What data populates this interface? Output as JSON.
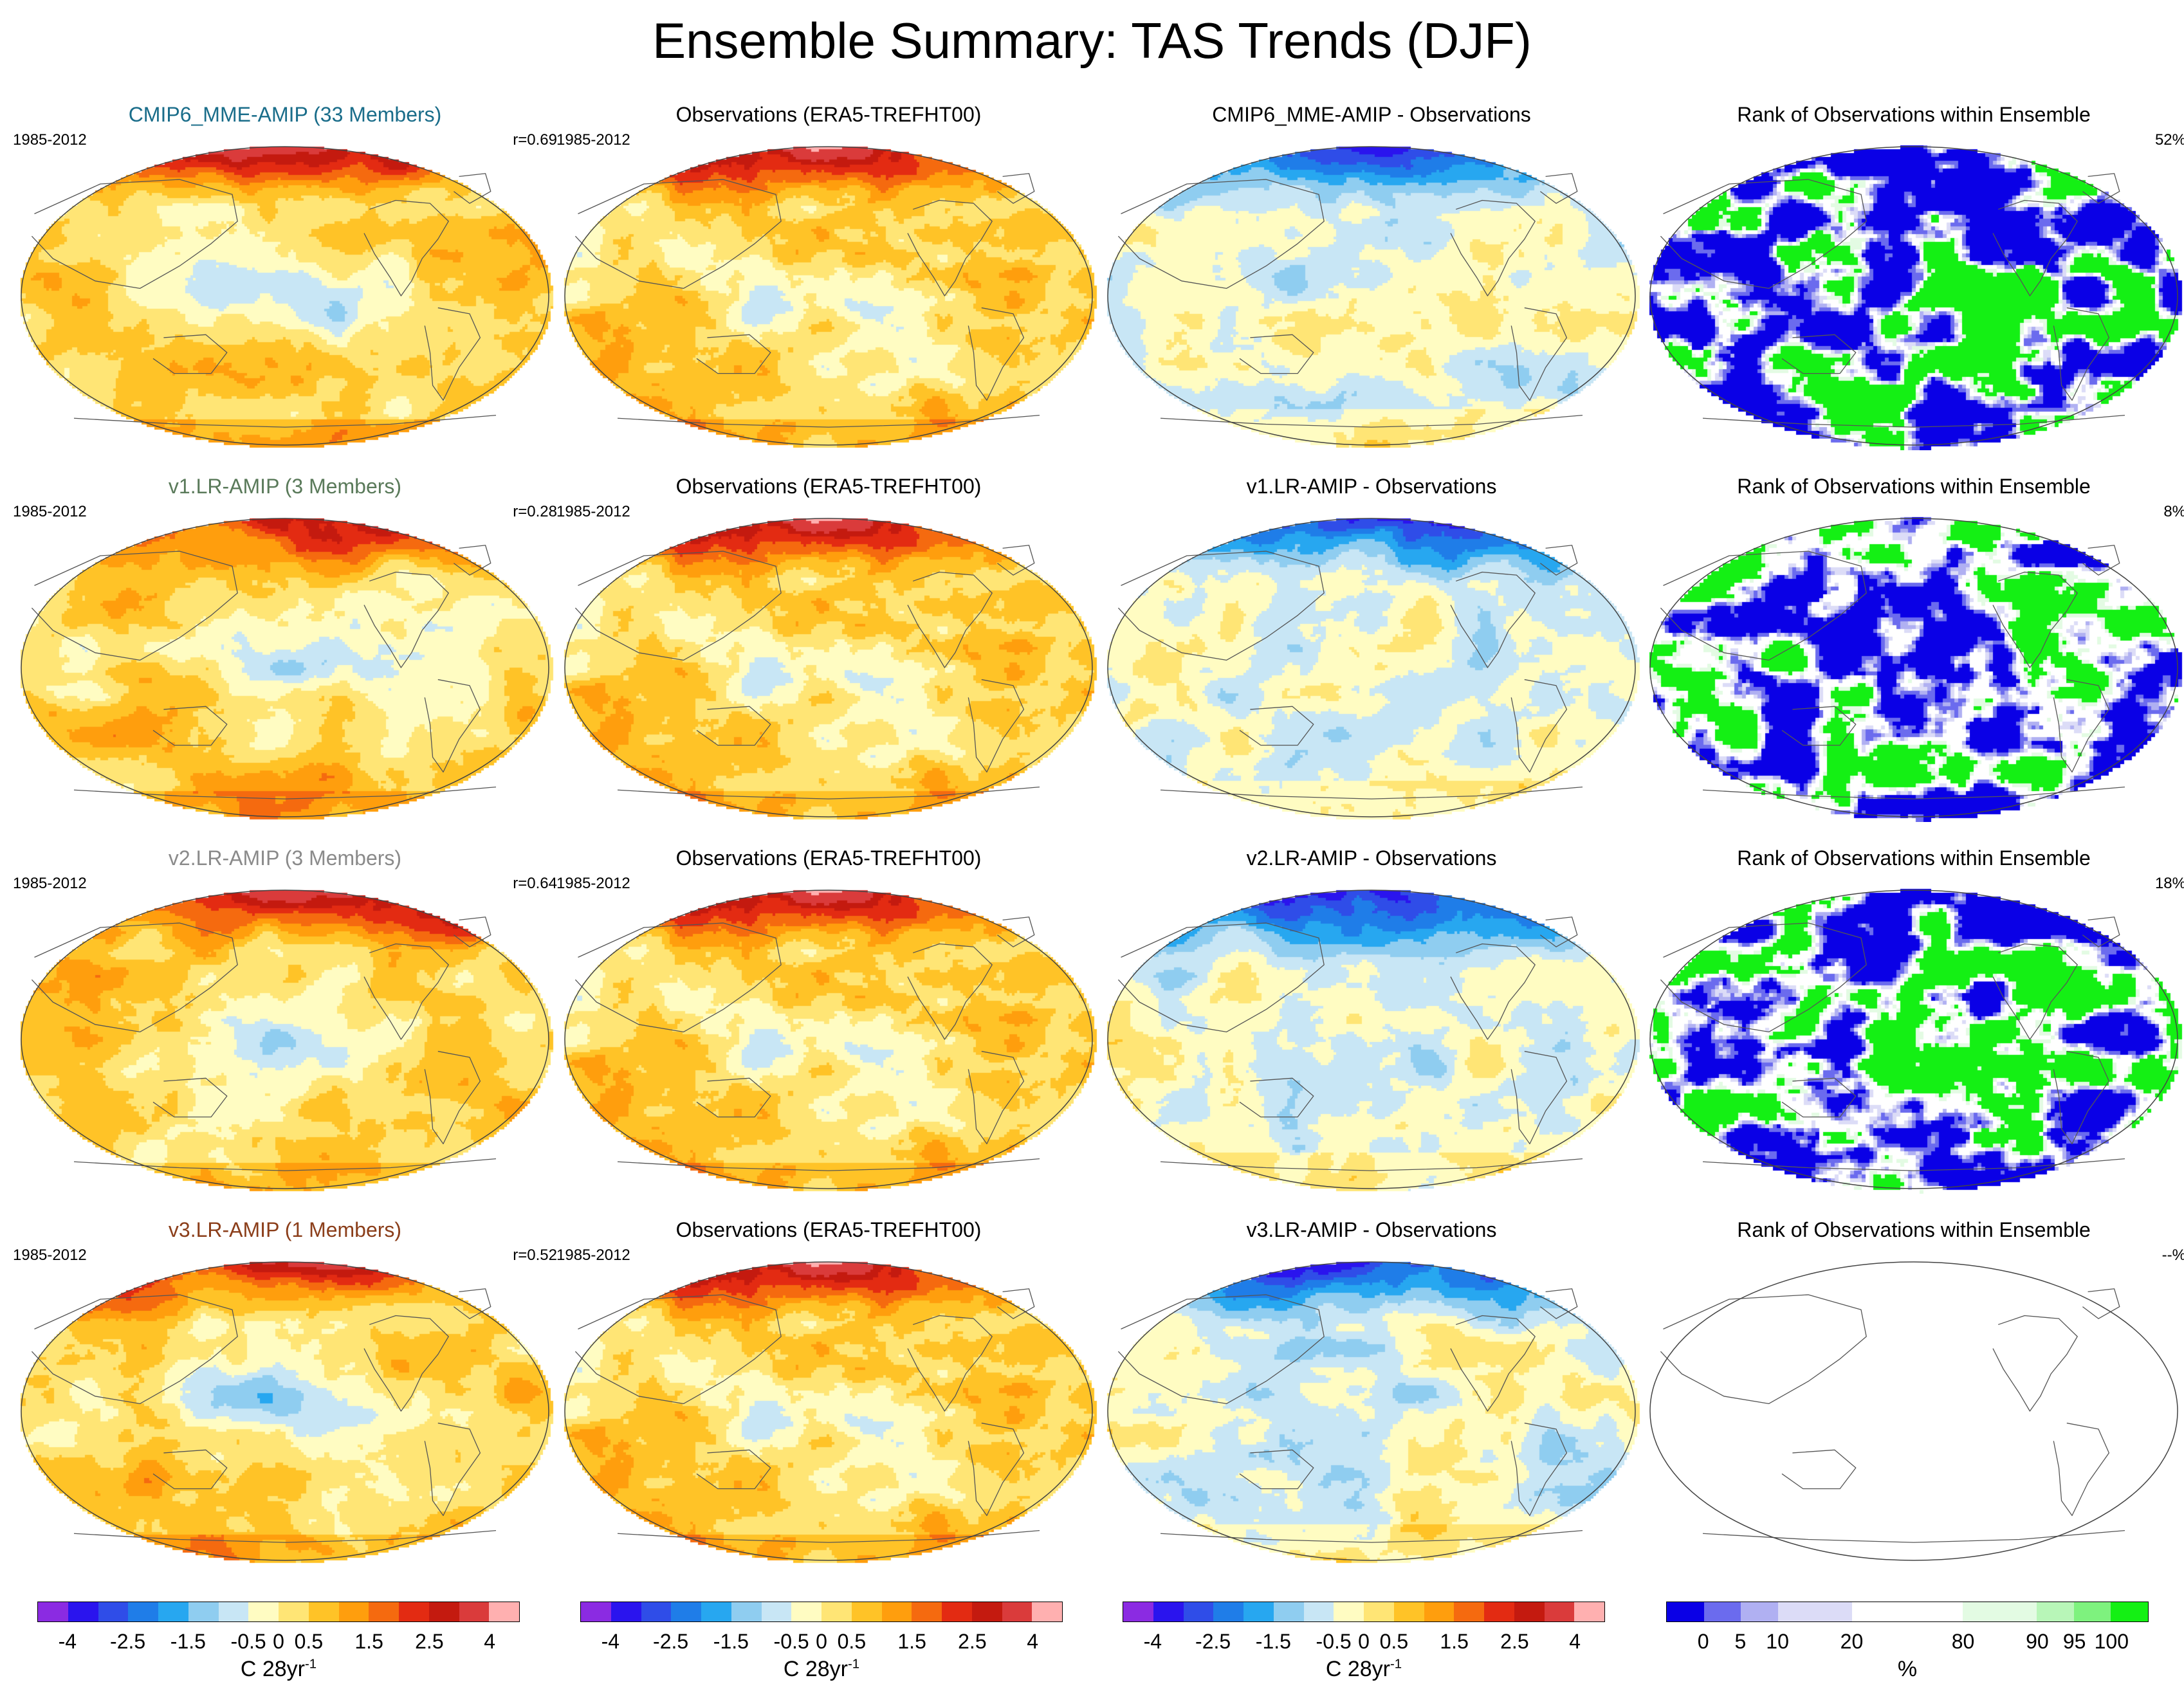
{
  "title": "Ensemble Summary: TAS Trends (DJF)",
  "colors": {
    "cmip6": "#1a6d8a",
    "v1": "#5a7a5a",
    "v2": "#8a8a8a",
    "v3": "#8b3e1a",
    "trend_scale": [
      "#8b2be2",
      "#2a14ee",
      "#2f4de8",
      "#1f7de8",
      "#27a7f0",
      "#8fcdf0",
      "#c8e6f5",
      "#fffcc2",
      "#ffe575",
      "#ffc327",
      "#ff9e0d",
      "#f56a0f",
      "#e32b12",
      "#c41a0f",
      "#da3b3b",
      "#ffb0b0"
    ],
    "rank_scale": [
      "#0a00e6",
      "#6b6bee",
      "#b0b0f2",
      "#dcdcf7",
      "#ffffff",
      "#e3fbe3",
      "#b8f6b8",
      "#7ef27e",
      "#14f014"
    ]
  },
  "rows": [
    {
      "model": {
        "title": "CMIP6_MME-AMIP (33 Members)",
        "period": "1985-2012",
        "corr": "r=0.69",
        "color_key": "cmip6"
      },
      "obs": {
        "title": "Observations (ERA5-TREFHT00)",
        "period": "1985-2012"
      },
      "diff": {
        "title": "CMIP6_MME-AMIP - Observations"
      },
      "rank": {
        "title": "Rank of Observations within Ensemble",
        "pct": "52%"
      }
    },
    {
      "model": {
        "title": "v1.LR-AMIP (3 Members)",
        "period": "1985-2012",
        "corr": "r=0.28",
        "color_key": "v1"
      },
      "obs": {
        "title": "Observations (ERA5-TREFHT00)",
        "period": "1985-2012"
      },
      "diff": {
        "title": "v1.LR-AMIP - Observations"
      },
      "rank": {
        "title": "Rank of Observations within Ensemble",
        "pct": "8%"
      }
    },
    {
      "model": {
        "title": "v2.LR-AMIP (3 Members)",
        "period": "1985-2012",
        "corr": "r=0.64",
        "color_key": "v2"
      },
      "obs": {
        "title": "Observations (ERA5-TREFHT00)",
        "period": "1985-2012"
      },
      "diff": {
        "title": "v2.LR-AMIP - Observations"
      },
      "rank": {
        "title": "Rank of Observations within Ensemble",
        "pct": "18%"
      }
    },
    {
      "model": {
        "title": "v3.LR-AMIP (1 Members)",
        "period": "1985-2012",
        "corr": "r=0.52",
        "color_key": "v3"
      },
      "obs": {
        "title": "Observations (ERA5-TREFHT00)",
        "period": "1985-2012"
      },
      "diff": {
        "title": "v3.LR-AMIP - Observations"
      },
      "rank": {
        "title": "Rank of Observations within Ensemble",
        "pct": "--%"
      }
    }
  ],
  "trend_colorbar": {
    "labels": [
      "-4",
      "-2.5",
      "-1.5",
      "-0.5",
      "0",
      "0.5",
      "1.5",
      "2.5",
      "4"
    ],
    "unit": "C 28yr",
    "unit_sup": "-1"
  },
  "rank_colorbar": {
    "labels": [
      "0",
      "5",
      "10",
      "20",
      "80",
      "90",
      "95",
      "100"
    ],
    "unit": "%"
  }
}
